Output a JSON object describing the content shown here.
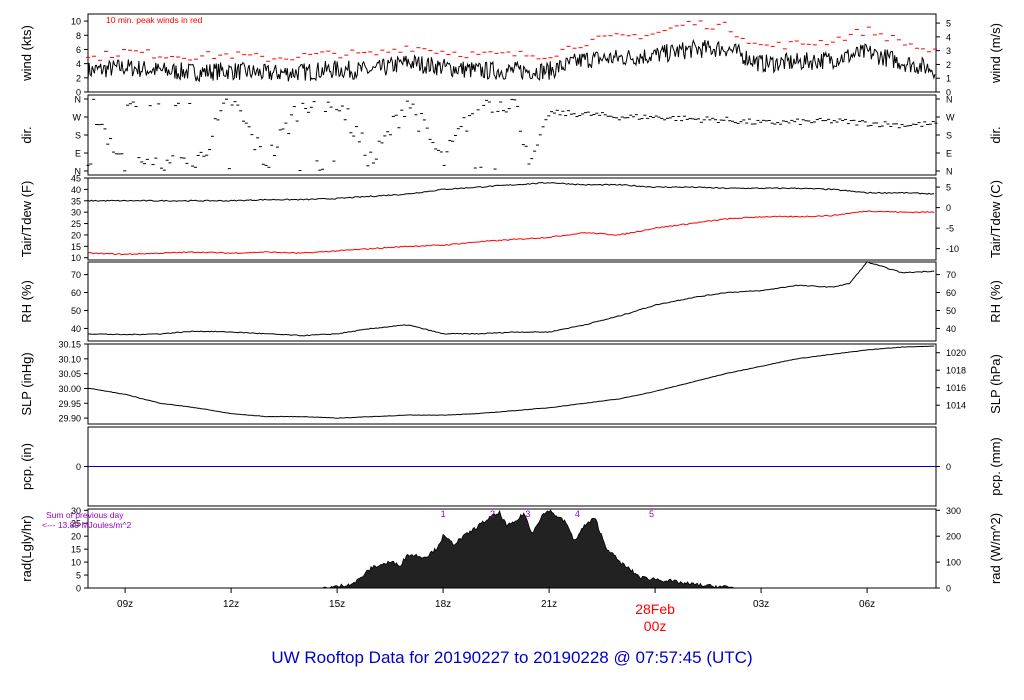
{
  "title": "UW Rooftop Data for 20190227  to  20190228 @ 07:57:45  (UTC)",
  "colors": {
    "title": "#0000cc",
    "temp": "#000000",
    "dew": "#ff0000",
    "peak": "#ff0000",
    "precip": "#0000cc",
    "note": "#9900cc",
    "date": "#ff0000"
  },
  "x_axis": {
    "ticks": [
      {
        "hour": 9,
        "label": "09z"
      },
      {
        "hour": 12,
        "label": "12z"
      },
      {
        "hour": 15,
        "label": "15z"
      },
      {
        "hour": 18,
        "label": "18z"
      },
      {
        "hour": 21,
        "label": "21z"
      },
      {
        "hour": 27,
        "label": "03z"
      },
      {
        "hour": 30,
        "label": "06z"
      }
    ],
    "date_mark": {
      "hour": 24,
      "date": "28Feb",
      "time": "00z"
    },
    "range_hours": [
      7.95,
      31.95
    ]
  },
  "chart_data": [
    {
      "type": "line",
      "id": "wind",
      "ylabel": "wind (kts)",
      "ylabel_right": "wind (m/s)",
      "ylim": [
        0,
        11
      ],
      "yticks": [
        0,
        2,
        4,
        6,
        8,
        10
      ],
      "yticks_right": [
        0,
        1,
        2,
        3,
        4,
        5
      ],
      "annotation": "10 min. peak winds in red",
      "series": [
        {
          "x_hours": [
            8,
            9,
            10,
            11,
            12,
            13,
            14,
            15,
            16,
            17,
            18,
            19,
            20,
            21,
            22,
            23,
            24,
            25,
            26,
            27,
            28,
            29,
            30,
            31,
            31.95
          ],
          "values": [
            3,
            3.5,
            3,
            2.8,
            3,
            2.6,
            2.8,
            3.2,
            3,
            4.2,
            3.5,
            3,
            3,
            3,
            4.6,
            4.8,
            5.2,
            6,
            6.2,
            4,
            4.2,
            4.6,
            5.6,
            4.2,
            3.2
          ]
        },
        {
          "x_hours": [
            8,
            9,
            10,
            11,
            12,
            13,
            14,
            15,
            16,
            17,
            18,
            19,
            20,
            21,
            22,
            23,
            24,
            25,
            26,
            27,
            28,
            29,
            30,
            31,
            31.95
          ],
          "values": [
            4.5,
            5.5,
            5,
            4.8,
            5,
            4.5,
            4.8,
            5.2,
            5,
            6.2,
            5.5,
            5,
            5,
            5,
            6.8,
            7.5,
            8,
            9.5,
            9,
            6.2,
            6.5,
            7,
            8.5,
            6.8,
            5.2
          ]
        }
      ]
    },
    {
      "type": "scatter",
      "id": "dir",
      "ylabel": "dir.",
      "ylabel_right": "dir.",
      "yticks": [
        "N",
        "E",
        "S",
        "W",
        "N"
      ],
      "ylim": [
        0,
        360
      ],
      "series": [
        {
          "x_hours": [
            8,
            9,
            10,
            11,
            12,
            13,
            14,
            15,
            16,
            17,
            18,
            19,
            20,
            20.5,
            21,
            22,
            23,
            24,
            25,
            26,
            27,
            28,
            29,
            30,
            31,
            31.95
          ],
          "values": [
            350,
            15,
            20,
            25,
            360,
            40,
            350,
            355,
            40,
            355,
            40,
            350,
            350,
            45,
            290,
            285,
            270,
            270,
            260,
            255,
            240,
            245,
            250,
            240,
            230,
            235
          ]
        }
      ]
    },
    {
      "type": "line",
      "id": "temp",
      "ylabel": "Tair/Tdew (F)",
      "ylabel_right": "Tair/Tdew (C)",
      "ylim": [
        9,
        45
      ],
      "yticks": [
        10,
        15,
        20,
        25,
        30,
        35,
        40,
        45
      ],
      "yticks_right": [
        -10,
        -5,
        0,
        5
      ],
      "series": [
        {
          "x_hours": [
            8,
            9,
            10,
            11,
            12,
            13,
            14,
            15,
            16,
            17,
            18,
            19,
            20,
            21,
            22,
            23,
            24,
            25,
            26,
            27,
            28,
            29,
            30,
            31,
            31.95
          ],
          "values": [
            35,
            35,
            35,
            35,
            35,
            35.5,
            35.5,
            36,
            37,
            38,
            40,
            41,
            42,
            43,
            42,
            42,
            41,
            41,
            40.5,
            40.5,
            40.5,
            40,
            38.5,
            38.5,
            38
          ]
        },
        {
          "x_hours": [
            8,
            9,
            10,
            11,
            12,
            13,
            14,
            15,
            16,
            17,
            18,
            19,
            20,
            21,
            22,
            23,
            24,
            25,
            26,
            27,
            28,
            29,
            30,
            31,
            31.95
          ],
          "values": [
            12,
            11.5,
            12,
            12.5,
            12,
            12.5,
            12,
            13,
            14,
            15,
            15.5,
            17,
            18,
            19,
            21,
            20,
            23,
            25,
            27,
            28,
            28,
            28.5,
            30.5,
            30,
            30
          ]
        }
      ]
    },
    {
      "type": "line",
      "id": "rh",
      "ylabel": "RH (%)",
      "ylabel_right": "RH (%)",
      "ylim": [
        33,
        77
      ],
      "yticks": [
        40,
        50,
        60,
        70
      ],
      "yticks_right": [
        40,
        50,
        60,
        70
      ],
      "series": [
        {
          "x_hours": [
            8,
            9,
            10,
            11,
            12,
            13,
            14,
            15,
            16,
            17,
            18,
            19,
            20,
            21,
            22,
            23,
            24,
            25,
            26,
            27,
            28,
            29,
            29.5,
            30,
            31,
            31.95
          ],
          "values": [
            37,
            36.5,
            37,
            38.5,
            38,
            37,
            36,
            37,
            40,
            42,
            37,
            37,
            38,
            38,
            42,
            47,
            53,
            57,
            60,
            61,
            64,
            63,
            65,
            77,
            71,
            72
          ]
        }
      ]
    },
    {
      "type": "line",
      "id": "slp",
      "ylabel": "SLP (inHg)",
      "ylabel_right": "SLP (hPa)",
      "ylim": [
        29.88,
        30.15
      ],
      "yticks": [
        29.9,
        29.95,
        30.0,
        30.05,
        30.1,
        30.15
      ],
      "yticks_right": [
        1014,
        1016,
        1018,
        1020
      ],
      "series": [
        {
          "x_hours": [
            8,
            9,
            10,
            11,
            12,
            13,
            14,
            15,
            16,
            17,
            18,
            19,
            20,
            21,
            22,
            23,
            24,
            25,
            26,
            27,
            28,
            29,
            30,
            31,
            31.95
          ],
          "values": [
            30.0,
            29.98,
            29.95,
            29.935,
            29.915,
            29.905,
            29.905,
            29.9,
            29.905,
            29.91,
            29.91,
            29.915,
            29.925,
            29.935,
            29.95,
            29.965,
            29.99,
            30.02,
            30.05,
            30.075,
            30.1,
            30.115,
            30.13,
            30.14,
            30.143
          ]
        }
      ]
    },
    {
      "type": "line",
      "id": "precip",
      "ylabel": "pcp. (in)",
      "ylabel_right": "pcp. (mm)",
      "ylim": [
        -1,
        1
      ],
      "yticks": [
        0
      ],
      "yticks_right": [
        0
      ],
      "series": [
        {
          "x_hours": [
            8,
            31.95
          ],
          "values": [
            0,
            0
          ]
        }
      ]
    },
    {
      "type": "area",
      "id": "rad",
      "ylabel": "rad(Lgly/hr)",
      "ylabel_right": "rad (W/m^2)",
      "ylim": [
        0,
        30.5
      ],
      "yticks": [
        0,
        5,
        10,
        15,
        20,
        25,
        30
      ],
      "yticks_right": [
        0,
        100,
        200,
        300
      ],
      "note": "Sum of previous day",
      "note2": "<--- 13.89 MJoules/m^2",
      "markers": [
        {
          "hour": 18.0,
          "label": "1"
        },
        {
          "hour": 19.4,
          "label": "2"
        },
        {
          "hour": 20.4,
          "label": "3"
        },
        {
          "hour": 21.8,
          "label": "4"
        },
        {
          "hour": 23.9,
          "label": "5"
        }
      ],
      "series": [
        {
          "x_hours": [
            14.6,
            15,
            15.5,
            16,
            16.5,
            16.8,
            17,
            17.5,
            17.8,
            18,
            18.3,
            18.6,
            19,
            19.3,
            19.6,
            19.8,
            20,
            20.3,
            20.5,
            20.8,
            21,
            21.2,
            21.5,
            21.7,
            22,
            22.3,
            22.6,
            23,
            23.3,
            23.6,
            24,
            24.5,
            25,
            25.5,
            26,
            26.3
          ],
          "values": [
            0,
            0.5,
            2,
            8,
            10,
            9,
            13,
            12,
            15,
            20,
            17,
            20,
            24,
            27,
            29,
            24,
            25,
            29,
            21,
            28,
            30,
            28,
            25,
            18,
            24,
            27,
            16,
            10,
            7,
            4,
            3.5,
            2.5,
            1.5,
            0.8,
            0.4,
            0
          ]
        }
      ]
    }
  ]
}
